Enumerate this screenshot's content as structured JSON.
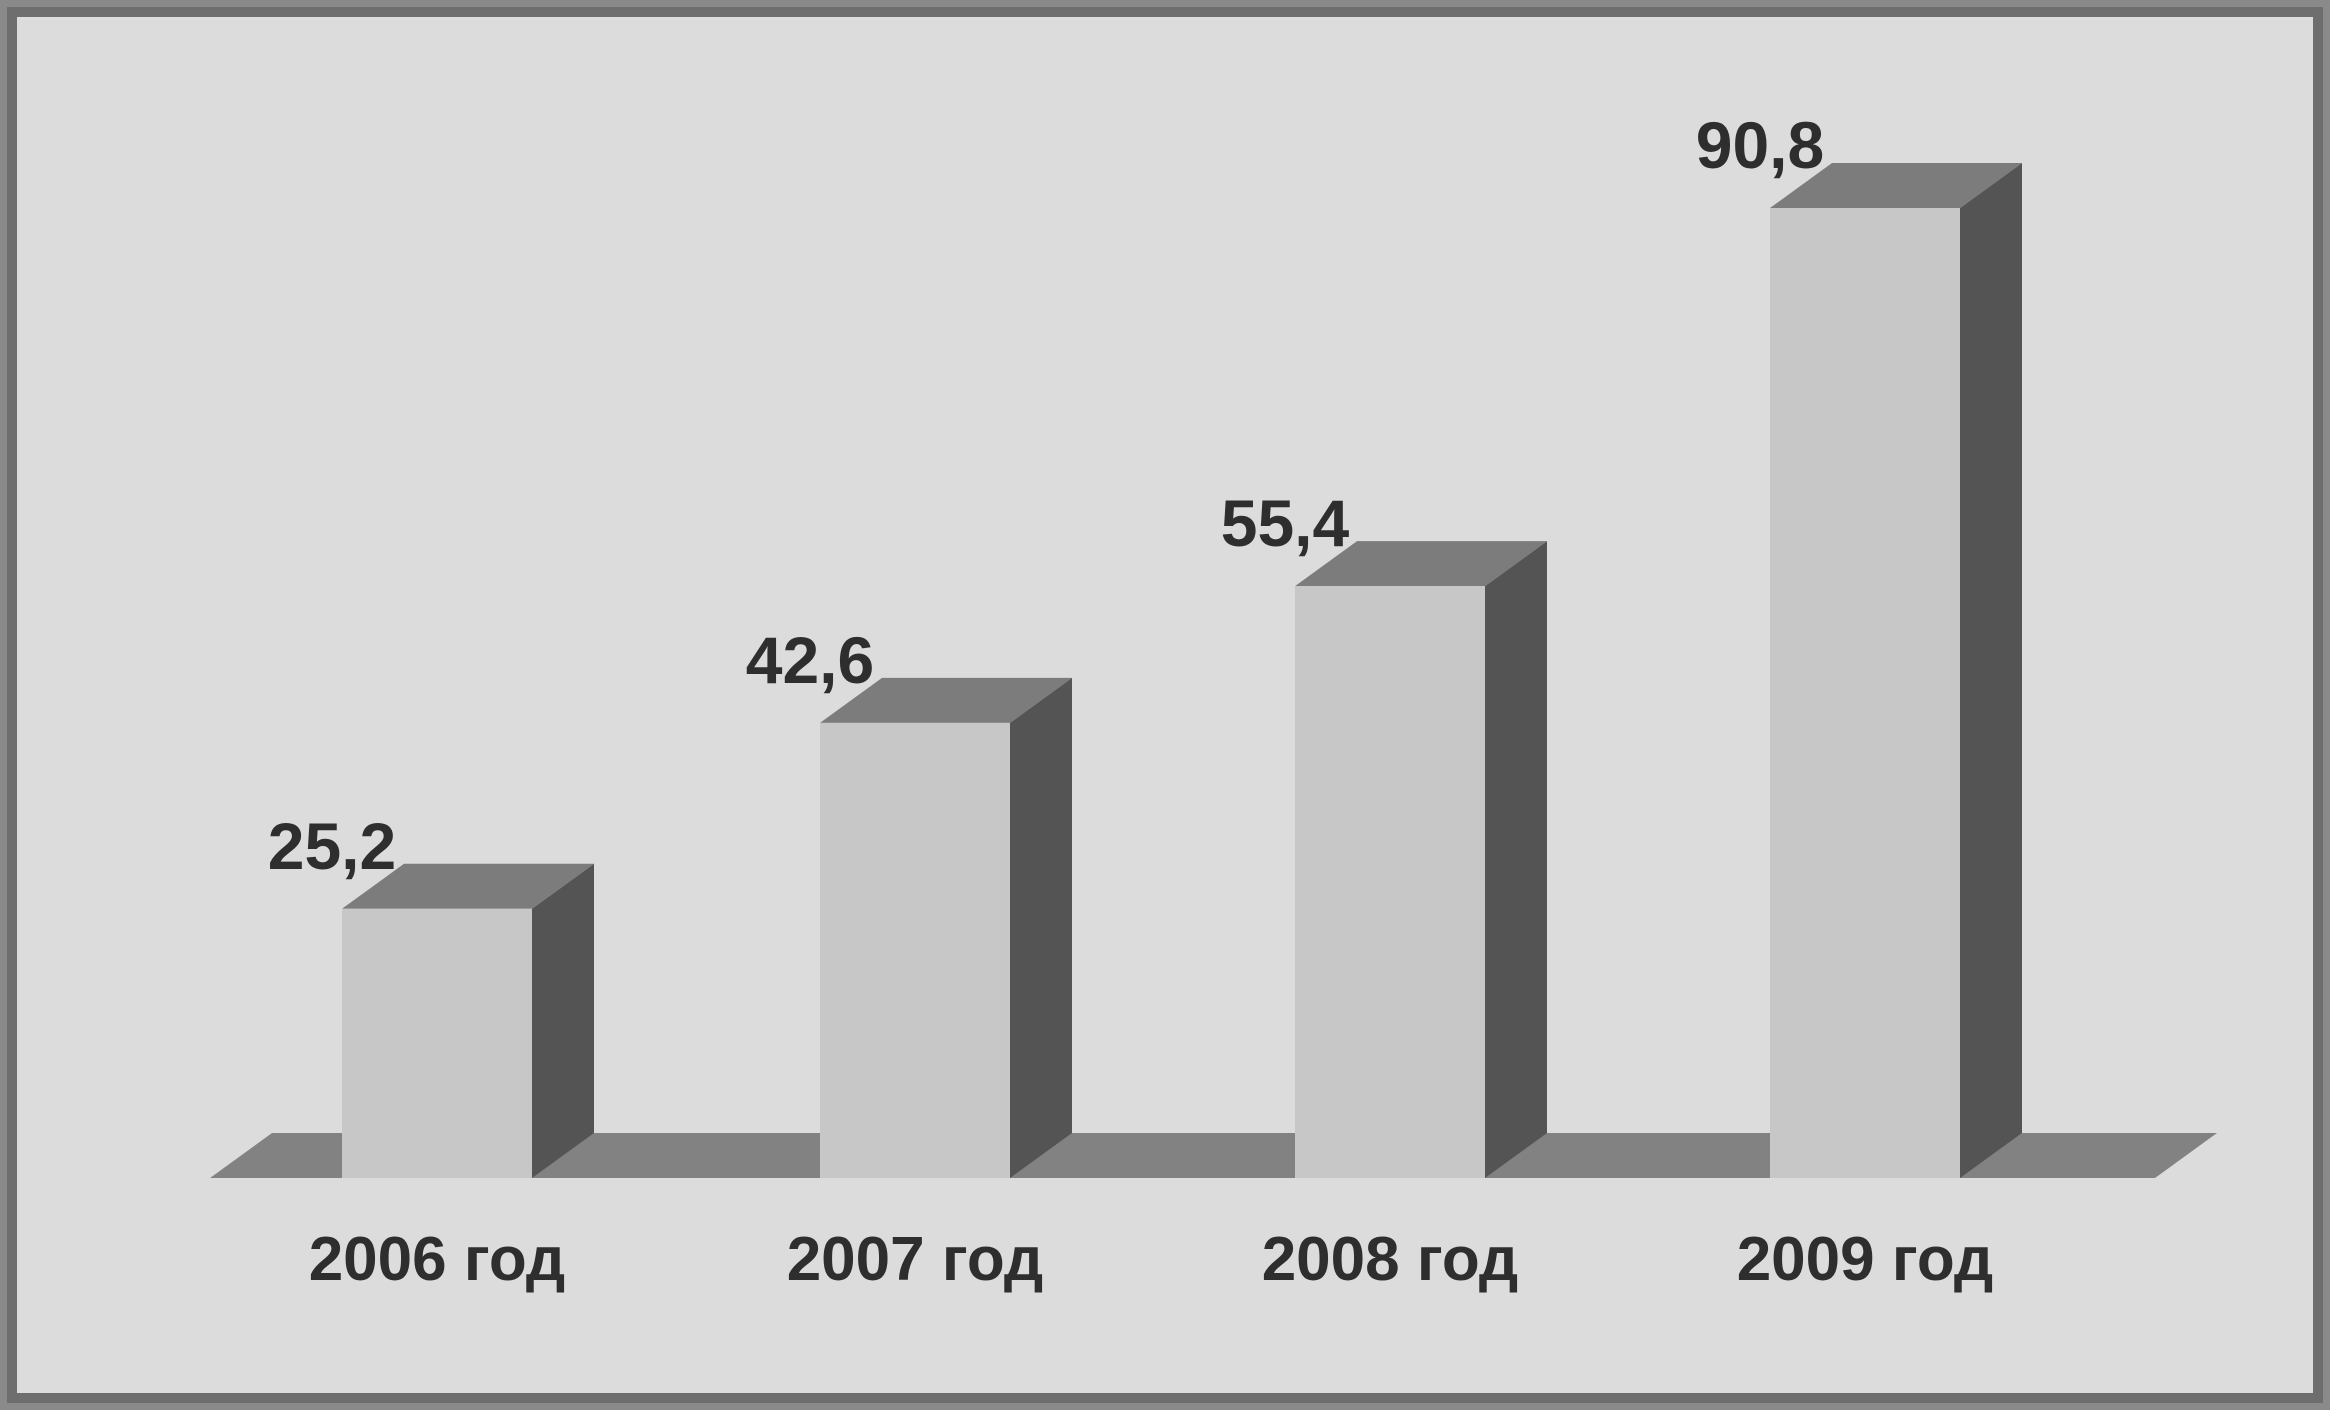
{
  "chart_data": {
    "type": "bar",
    "categories": [
      "2006 год",
      "2007 год",
      "2008 год",
      "2009 год"
    ],
    "values": [
      25.2,
      42.6,
      55.4,
      90.8
    ],
    "value_labels": [
      "25,2",
      "42,6",
      "55,4",
      "90,8"
    ],
    "title": "",
    "xlabel": "",
    "ylabel": "",
    "ylim": [
      0,
      90.8
    ],
    "grid": false,
    "legend": "none",
    "style": "3d-columns",
    "colors": {
      "background": "#dcdcdc",
      "frame": "#6e6e6e",
      "bar_front": "#c7c7c7",
      "bar_side": "#545454",
      "bar_top": "#7c7c7c",
      "floor": "#828282",
      "text": "#2e2e2e"
    }
  }
}
